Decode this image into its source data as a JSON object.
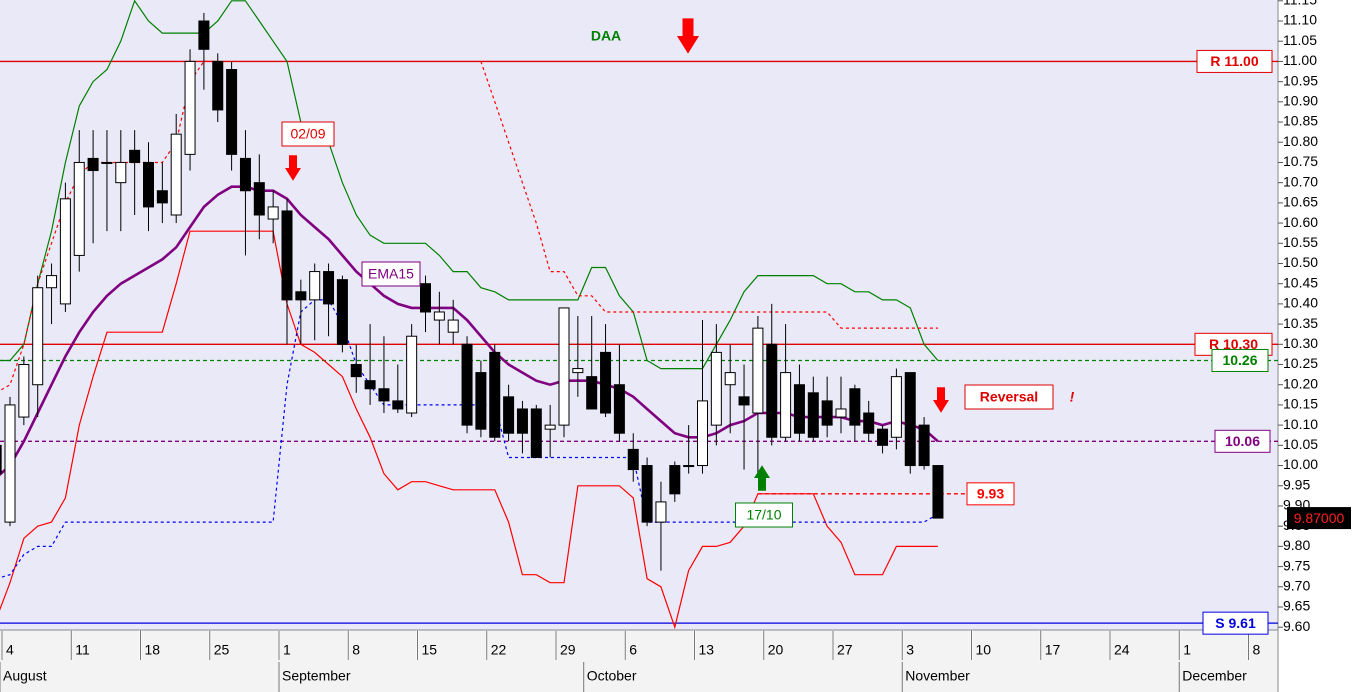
{
  "chart_data": {
    "type": "candlestick",
    "categories": [
      null,
      "4",
      null,
      null,
      null,
      null,
      "11",
      null,
      null,
      null,
      null,
      "18",
      null,
      null,
      null,
      null,
      "25",
      null,
      null,
      null,
      null,
      "1",
      null,
      null,
      null,
      null,
      "8",
      null,
      null,
      null,
      null,
      "15",
      null,
      null,
      null,
      null,
      "22",
      null,
      null,
      null,
      null,
      "29",
      null,
      null,
      null,
      null,
      "6",
      null,
      null,
      null,
      null,
      "13",
      null,
      null,
      null,
      null,
      "20",
      null,
      null,
      null,
      null,
      "27",
      null,
      null,
      null,
      null,
      "3",
      null,
      null,
      null,
      null,
      "10",
      null,
      null,
      null,
      null,
      "17",
      null,
      null,
      null,
      null,
      "24",
      null,
      null,
      null,
      null,
      "1",
      null,
      null,
      null,
      null,
      "8",
      null
    ],
    "months": [
      "August",
      "September",
      "October",
      "November",
      "December"
    ],
    "open": [
      10.05,
      9.86,
      10.12,
      10.2,
      10.44,
      10.4,
      10.52,
      10.76,
      10.75,
      10.7,
      10.78,
      10.75,
      10.68,
      10.62,
      10.77,
      11.1,
      11.0,
      10.98,
      10.76,
      10.7,
      10.61,
      10.63,
      10.43,
      10.41,
      10.48,
      10.46,
      10.25,
      10.21,
      10.19,
      10.16,
      10.13,
      10.45,
      10.36,
      10.33,
      10.3,
      10.23,
      10.28,
      10.17,
      10.14,
      10.14,
      10.09,
      10.1,
      10.23,
      10.22,
      10.28,
      10.2,
      10.04,
      10.0,
      9.86,
      10.0,
      10.0,
      10.0,
      10.1,
      10.2,
      10.17,
      10.13,
      10.3,
      10.07,
      10.2,
      10.18,
      10.16,
      10.12,
      10.19,
      10.13,
      10.09,
      10.07,
      10.23,
      10.1,
      10.0,
      null,
      null,
      null,
      null,
      null,
      null,
      null,
      null,
      null,
      null,
      null,
      null,
      null,
      null,
      null,
      null,
      null,
      null,
      null,
      null,
      null,
      null,
      null,
      null
    ],
    "high": [
      10.08,
      10.17,
      10.27,
      10.47,
      10.5,
      10.7,
      10.83,
      10.83,
      10.83,
      10.83,
      10.83,
      10.8,
      10.75,
      10.87,
      11.03,
      11.12,
      11.02,
      11.0,
      10.83,
      10.77,
      10.68,
      10.66,
      10.46,
      10.5,
      10.5,
      10.47,
      10.3,
      10.35,
      10.32,
      10.25,
      10.35,
      10.47,
      10.43,
      10.41,
      10.32,
      10.26,
      10.3,
      10.2,
      10.16,
      10.15,
      10.15,
      10.39,
      10.37,
      10.37,
      10.35,
      10.3,
      10.08,
      10.02,
      9.96,
      10.01,
      10.1,
      10.36,
      10.35,
      10.3,
      10.25,
      10.37,
      10.4,
      10.35,
      10.25,
      10.22,
      10.22,
      10.22,
      10.2,
      10.16,
      10.1,
      10.24,
      10.23,
      10.12,
      10.0,
      null,
      null,
      null,
      null,
      null,
      null,
      null,
      null,
      null,
      null,
      null,
      null,
      null,
      null,
      null,
      null,
      null,
      null,
      null,
      null,
      null,
      null,
      null,
      null
    ],
    "low": [
      9.95,
      9.85,
      10.1,
      10.12,
      10.35,
      10.38,
      10.48,
      10.55,
      10.58,
      10.58,
      10.62,
      10.58,
      10.6,
      10.6,
      10.73,
      10.93,
      10.85,
      10.73,
      10.52,
      10.56,
      10.55,
      10.3,
      10.3,
      10.31,
      10.32,
      10.28,
      10.18,
      10.15,
      10.13,
      10.13,
      10.12,
      10.33,
      10.3,
      10.3,
      10.08,
      10.07,
      10.06,
      10.06,
      10.03,
      10.02,
      10.02,
      10.07,
      10.17,
      10.14,
      10.12,
      10.06,
      9.96,
      9.85,
      9.74,
      9.91,
      9.98,
      9.98,
      10.05,
      10.08,
      9.99,
      9.97,
      10.05,
      10.06,
      10.06,
      10.06,
      10.07,
      10.08,
      10.06,
      10.06,
      10.03,
      10.04,
      9.98,
      9.99,
      9.87,
      null,
      null,
      null,
      null,
      null,
      null,
      null,
      null,
      null,
      null,
      null,
      null,
      null,
      null,
      null,
      null,
      null,
      null,
      null,
      null,
      null,
      null,
      null,
      null
    ],
    "close": [
      9.98,
      10.15,
      10.25,
      10.44,
      10.47,
      10.66,
      10.75,
      10.73,
      10.75,
      10.75,
      10.75,
      10.64,
      10.65,
      10.82,
      11.0,
      11.03,
      10.88,
      10.77,
      10.68,
      10.62,
      10.64,
      10.41,
      10.41,
      10.48,
      10.4,
      10.3,
      10.22,
      10.19,
      10.16,
      10.14,
      10.32,
      10.38,
      10.38,
      10.36,
      10.1,
      10.09,
      10.07,
      10.08,
      10.08,
      10.02,
      10.1,
      10.39,
      10.24,
      10.14,
      10.13,
      10.08,
      9.99,
      9.86,
      9.91,
      9.93,
      10.0,
      10.16,
      10.28,
      10.23,
      10.15,
      10.34,
      10.07,
      10.23,
      10.08,
      10.07,
      10.1,
      10.14,
      10.1,
      10.08,
      10.05,
      10.22,
      10.0,
      10.0,
      9.87,
      null,
      null,
      null,
      null,
      null,
      null,
      null,
      null,
      null,
      null,
      null,
      null,
      null,
      null,
      null,
      null,
      null,
      null,
      null,
      null,
      null,
      null,
      null,
      null
    ],
    "series": [
      {
        "name": "EMA15",
        "color": "#800080",
        "values": [
          9.97,
          10.0,
          10.06,
          10.13,
          10.2,
          10.27,
          10.33,
          10.38,
          10.42,
          10.45,
          10.47,
          10.49,
          10.51,
          10.54,
          10.59,
          10.64,
          10.67,
          10.69,
          10.69,
          10.68,
          10.68,
          10.66,
          10.62,
          10.59,
          10.56,
          10.52,
          10.48,
          10.45,
          10.42,
          10.4,
          10.39,
          10.39,
          10.39,
          10.39,
          10.36,
          10.32,
          10.28,
          10.25,
          10.23,
          10.21,
          10.2,
          10.21,
          10.21,
          10.21,
          10.2,
          10.19,
          10.17,
          10.14,
          10.11,
          10.08,
          10.07,
          10.07,
          10.08,
          10.1,
          10.11,
          10.13,
          10.13,
          10.13,
          10.12,
          10.12,
          10.12,
          10.12,
          10.11,
          10.11,
          10.1,
          10.11,
          10.1,
          10.09,
          10.06,
          null,
          null,
          null,
          null,
          null,
          null,
          null,
          null,
          null,
          null,
          null,
          null,
          null,
          null,
          null,
          null,
          null,
          null,
          null,
          null,
          null,
          null,
          null,
          null
        ]
      },
      {
        "color": "#008000",
        "values": [
          10.26,
          10.26,
          10.3,
          10.45,
          10.58,
          10.75,
          10.89,
          10.95,
          10.98,
          11.05,
          11.15,
          11.1,
          11.07,
          11.07,
          11.07,
          11.07,
          11.1,
          11.15,
          11.15,
          11.1,
          11.05,
          11.0,
          10.85,
          10.8,
          10.8,
          10.7,
          10.62,
          10.57,
          10.55,
          10.55,
          10.55,
          10.55,
          10.52,
          10.48,
          10.48,
          10.44,
          10.43,
          10.41,
          10.41,
          10.41,
          10.41,
          10.41,
          10.41,
          10.49,
          10.49,
          10.42,
          10.38,
          10.26,
          10.24,
          10.24,
          10.24,
          10.24,
          10.3,
          10.36,
          10.43,
          10.47,
          10.47,
          10.47,
          10.47,
          10.47,
          10.45,
          10.45,
          10.43,
          10.43,
          10.41,
          10.41,
          10.39,
          10.3,
          10.26,
          null,
          null,
          null,
          null,
          null,
          null,
          null,
          null,
          null,
          null,
          null,
          null,
          null,
          null,
          null,
          null,
          null,
          null,
          null,
          null,
          null,
          null,
          null,
          null
        ]
      },
      {
        "color": "#ff0000",
        "values": [
          9.62,
          9.71,
          9.82,
          9.85,
          9.86,
          9.92,
          10.1,
          10.22,
          10.33,
          10.33,
          10.33,
          10.33,
          10.33,
          10.45,
          10.58,
          10.58,
          10.58,
          10.58,
          10.58,
          10.58,
          10.58,
          10.4,
          10.3,
          10.28,
          10.25,
          10.22,
          10.14,
          10.07,
          9.98,
          9.94,
          9.96,
          9.96,
          9.95,
          9.94,
          9.94,
          9.94,
          9.94,
          9.86,
          9.73,
          9.73,
          9.71,
          9.71,
          9.95,
          9.95,
          9.95,
          9.95,
          9.92,
          9.72,
          9.7,
          9.6,
          9.74,
          9.8,
          9.8,
          9.81,
          9.85,
          9.93,
          9.93,
          9.93,
          9.93,
          9.93,
          9.85,
          9.81,
          9.73,
          9.73,
          9.73,
          9.8,
          9.8,
          9.8,
          9.8,
          null,
          null,
          null,
          null,
          null,
          null,
          null,
          null,
          null,
          null,
          null,
          null,
          null,
          null,
          null,
          null,
          null,
          null,
          null,
          null,
          null,
          null,
          null,
          null
        ]
      },
      {
        "color": "#ff0000",
        "dashed": true,
        "values": [
          10.18,
          10.2,
          10.3,
          10.45,
          10.55,
          10.65,
          10.72,
          10.75,
          10.75,
          10.75,
          10.75,
          10.75,
          10.75,
          10.8,
          10.95,
          11.0,
          11.0,
          null,
          null,
          null,
          null,
          null,
          null,
          null,
          null,
          null,
          null,
          null,
          null,
          null,
          null,
          null,
          null,
          null,
          null,
          11.0,
          10.9,
          10.8,
          10.7,
          10.6,
          10.48,
          10.48,
          10.42,
          10.42,
          10.38,
          10.38,
          10.38,
          10.38,
          10.38,
          10.38,
          10.38,
          10.38,
          10.38,
          10.38,
          10.38,
          10.38,
          10.38,
          10.38,
          10.38,
          10.38,
          10.38,
          10.34,
          10.34,
          10.34,
          10.34,
          10.34,
          10.34,
          10.34,
          10.34,
          null,
          null,
          null,
          null,
          null,
          null,
          null,
          null,
          null,
          null,
          null,
          null,
          null,
          null,
          null,
          null,
          null,
          null,
          null,
          null,
          null,
          null,
          null,
          null
        ]
      },
      {
        "color": "#0000ff",
        "dashed": true,
        "values": [
          9.72,
          9.73,
          9.78,
          9.8,
          9.8,
          9.86,
          9.86,
          9.86,
          9.86,
          9.86,
          9.86,
          9.86,
          9.86,
          9.86,
          9.86,
          9.86,
          9.86,
          9.86,
          9.86,
          9.86,
          9.86,
          10.2,
          10.38,
          10.41,
          10.41,
          10.35,
          10.25,
          10.2,
          10.15,
          10.15,
          10.15,
          10.15,
          10.15,
          10.15,
          10.15,
          10.15,
          10.15,
          10.02,
          10.02,
          10.02,
          10.02,
          10.02,
          10.02,
          10.02,
          10.02,
          10.02,
          10.02,
          9.86,
          9.86,
          9.86,
          9.86,
          9.86,
          9.86,
          9.86,
          9.86,
          9.86,
          9.86,
          9.86,
          9.86,
          9.86,
          9.86,
          9.86,
          9.86,
          9.86,
          9.86,
          9.86,
          9.86,
          9.86,
          9.88,
          null,
          null,
          null,
          null,
          null,
          null,
          null,
          null,
          null,
          null,
          null,
          null,
          null,
          null,
          null,
          null,
          null,
          null,
          null,
          null,
          null,
          null,
          null,
          null
        ]
      }
    ],
    "levels": [
      {
        "label": "R 11.00",
        "value": 11,
        "color": "#e00000"
      },
      {
        "label": "R 10,30",
        "value": 10.3,
        "color": "#e00000"
      },
      {
        "label": "10.26",
        "value": 10.26,
        "color": "#008000",
        "dashed": true
      },
      {
        "label": "10.06",
        "value": 10.06,
        "color": "#800080",
        "dashed": true
      },
      {
        "label": "S 9.61",
        "value": 9.61,
        "color": "#0000e0"
      },
      {
        "label": "9.93",
        "value": 9.93,
        "color": "#ff0000",
        "dashed": true
      }
    ],
    "last_price": {
      "label": "9.87000",
      "value": 9.87
    },
    "annotations": [
      {
        "text": "DAA",
        "color": "#008000"
      },
      {
        "text": "02/09",
        "color": "#e00000"
      },
      {
        "text": "EMA15",
        "color": "#800080"
      },
      {
        "text": "17/10",
        "color": "#008000"
      },
      {
        "text": "Reversal",
        "color": "#e00000"
      },
      {
        "text": "!",
        "color": "#e00000"
      }
    ],
    "ylim": [
      9.598,
      11.152
    ],
    "yticks": [
      11.15,
      {
        "value": 11.1,
        "label": "11.10"
      },
      11.05,
      {
        "value": 11,
        "label": "11.00"
      },
      10.95,
      {
        "value": 10.9,
        "label": "10.90"
      },
      10.85,
      {
        "value": 10.8,
        "label": "10.80"
      },
      10.75,
      {
        "value": 10.7,
        "label": "10.70"
      },
      10.65,
      {
        "value": 10.6,
        "label": "10.60"
      },
      10.55,
      {
        "value": 10.5,
        "label": "10.50"
      },
      10.45,
      {
        "value": 10.4,
        "label": "10.40"
      },
      10.35,
      {
        "value": 10.3,
        "label": "10.30"
      },
      10.25,
      {
        "value": 10.2,
        "label": "10.20"
      },
      10.15,
      {
        "value": 10.1,
        "label": "10.10"
      },
      10.05,
      {
        "value": 10,
        "label": "10.00"
      },
      9.95,
      {
        "value": 9.9,
        "label": "9.90"
      },
      9.85,
      {
        "value": 9.8,
        "label": "9.80"
      },
      9.75,
      {
        "value": 9.7,
        "label": "9.70"
      },
      9.65,
      {
        "value": 9.6,
        "label": "9.60"
      }
    ]
  }
}
